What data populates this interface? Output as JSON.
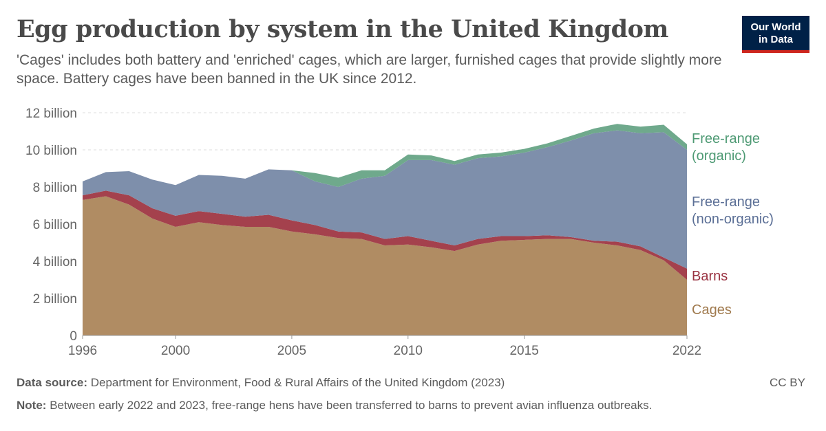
{
  "header": {
    "title": "Egg production by system in the United Kingdom",
    "subtitle": "'Cages' includes both battery and 'enriched' cages, which are larger, furnished cages that provide slightly more space. Battery cages have been banned in the UK since 2012."
  },
  "logo": {
    "line1": "Our World",
    "line2": "in Data"
  },
  "footer": {
    "source_label": "Data source:",
    "source_text": "Department for Environment, Food & Rural Affairs of the United Kingdom (2023)",
    "note_label": "Note:",
    "note_text": "Between early 2022 and 2023, free-range hens have been transferred to barns to prevent avian influenza outbreaks.",
    "license": "CC BY"
  },
  "colors": {
    "cages": "#b08c63",
    "barns": "#a4414d",
    "free_range_non_organic": "#7e8fab",
    "free_range_organic": "#6fa98c"
  },
  "chart_data": {
    "type": "area",
    "stacked": true,
    "x": [
      1996,
      1997,
      1998,
      1999,
      2000,
      2001,
      2002,
      2003,
      2004,
      2005,
      2006,
      2007,
      2008,
      2009,
      2010,
      2011,
      2012,
      2013,
      2014,
      2015,
      2016,
      2017,
      2018,
      2019,
      2020,
      2021,
      2022
    ],
    "xticks": [
      1996,
      2000,
      2005,
      2010,
      2015,
      2022
    ],
    "yticks": [
      0,
      2,
      4,
      6,
      8,
      10,
      12
    ],
    "ytick_labels": [
      "0",
      "2 billion",
      "4 billion",
      "6 billion",
      "8 billion",
      "10 billion",
      "12 billion"
    ],
    "ylim": [
      0,
      12
    ],
    "unit": "billion eggs",
    "grid": true,
    "series": [
      {
        "name": "Cages",
        "label_lines": [
          "Cages"
        ],
        "color": "#b08c63",
        "label_color": "#a07a4e",
        "values": [
          7.3,
          7.5,
          7.05,
          6.3,
          5.85,
          6.1,
          5.95,
          5.85,
          5.85,
          5.6,
          5.45,
          5.25,
          5.2,
          4.85,
          4.9,
          4.75,
          4.55,
          4.9,
          5.1,
          5.15,
          5.2,
          5.2,
          5.0,
          4.85,
          4.6,
          4.05,
          3.0
        ]
      },
      {
        "name": "Barns",
        "label_lines": [
          "Barns"
        ],
        "color": "#a4414d",
        "label_color": "#9a3342",
        "values": [
          0.25,
          0.3,
          0.5,
          0.55,
          0.6,
          0.6,
          0.6,
          0.55,
          0.65,
          0.6,
          0.5,
          0.35,
          0.35,
          0.35,
          0.45,
          0.35,
          0.3,
          0.3,
          0.25,
          0.2,
          0.2,
          0.1,
          0.1,
          0.2,
          0.2,
          0.15,
          0.6
        ]
      },
      {
        "name": "Free-range (non-organic)",
        "label_lines": [
          "Free-range",
          "(non-organic)"
        ],
        "color": "#7e8fab",
        "label_color": "#5b6f96",
        "values": [
          0.75,
          1.0,
          1.3,
          1.55,
          1.65,
          1.95,
          2.05,
          2.05,
          2.45,
          2.7,
          2.35,
          2.4,
          2.9,
          3.4,
          4.1,
          4.35,
          4.35,
          4.35,
          4.3,
          4.5,
          4.75,
          5.2,
          5.8,
          6.0,
          6.1,
          6.75,
          6.4
        ]
      },
      {
        "name": "Free-range (organic)",
        "label_lines": [
          "Free-range",
          "(organic)"
        ],
        "color": "#6fa98c",
        "label_color": "#4e9a74",
        "values": [
          0.0,
          0.0,
          0.0,
          0.0,
          0.0,
          0.0,
          0.0,
          0.0,
          0.0,
          0.0,
          0.45,
          0.5,
          0.45,
          0.3,
          0.3,
          0.25,
          0.2,
          0.2,
          0.2,
          0.2,
          0.2,
          0.25,
          0.25,
          0.35,
          0.35,
          0.4,
          0.3
        ]
      }
    ]
  }
}
